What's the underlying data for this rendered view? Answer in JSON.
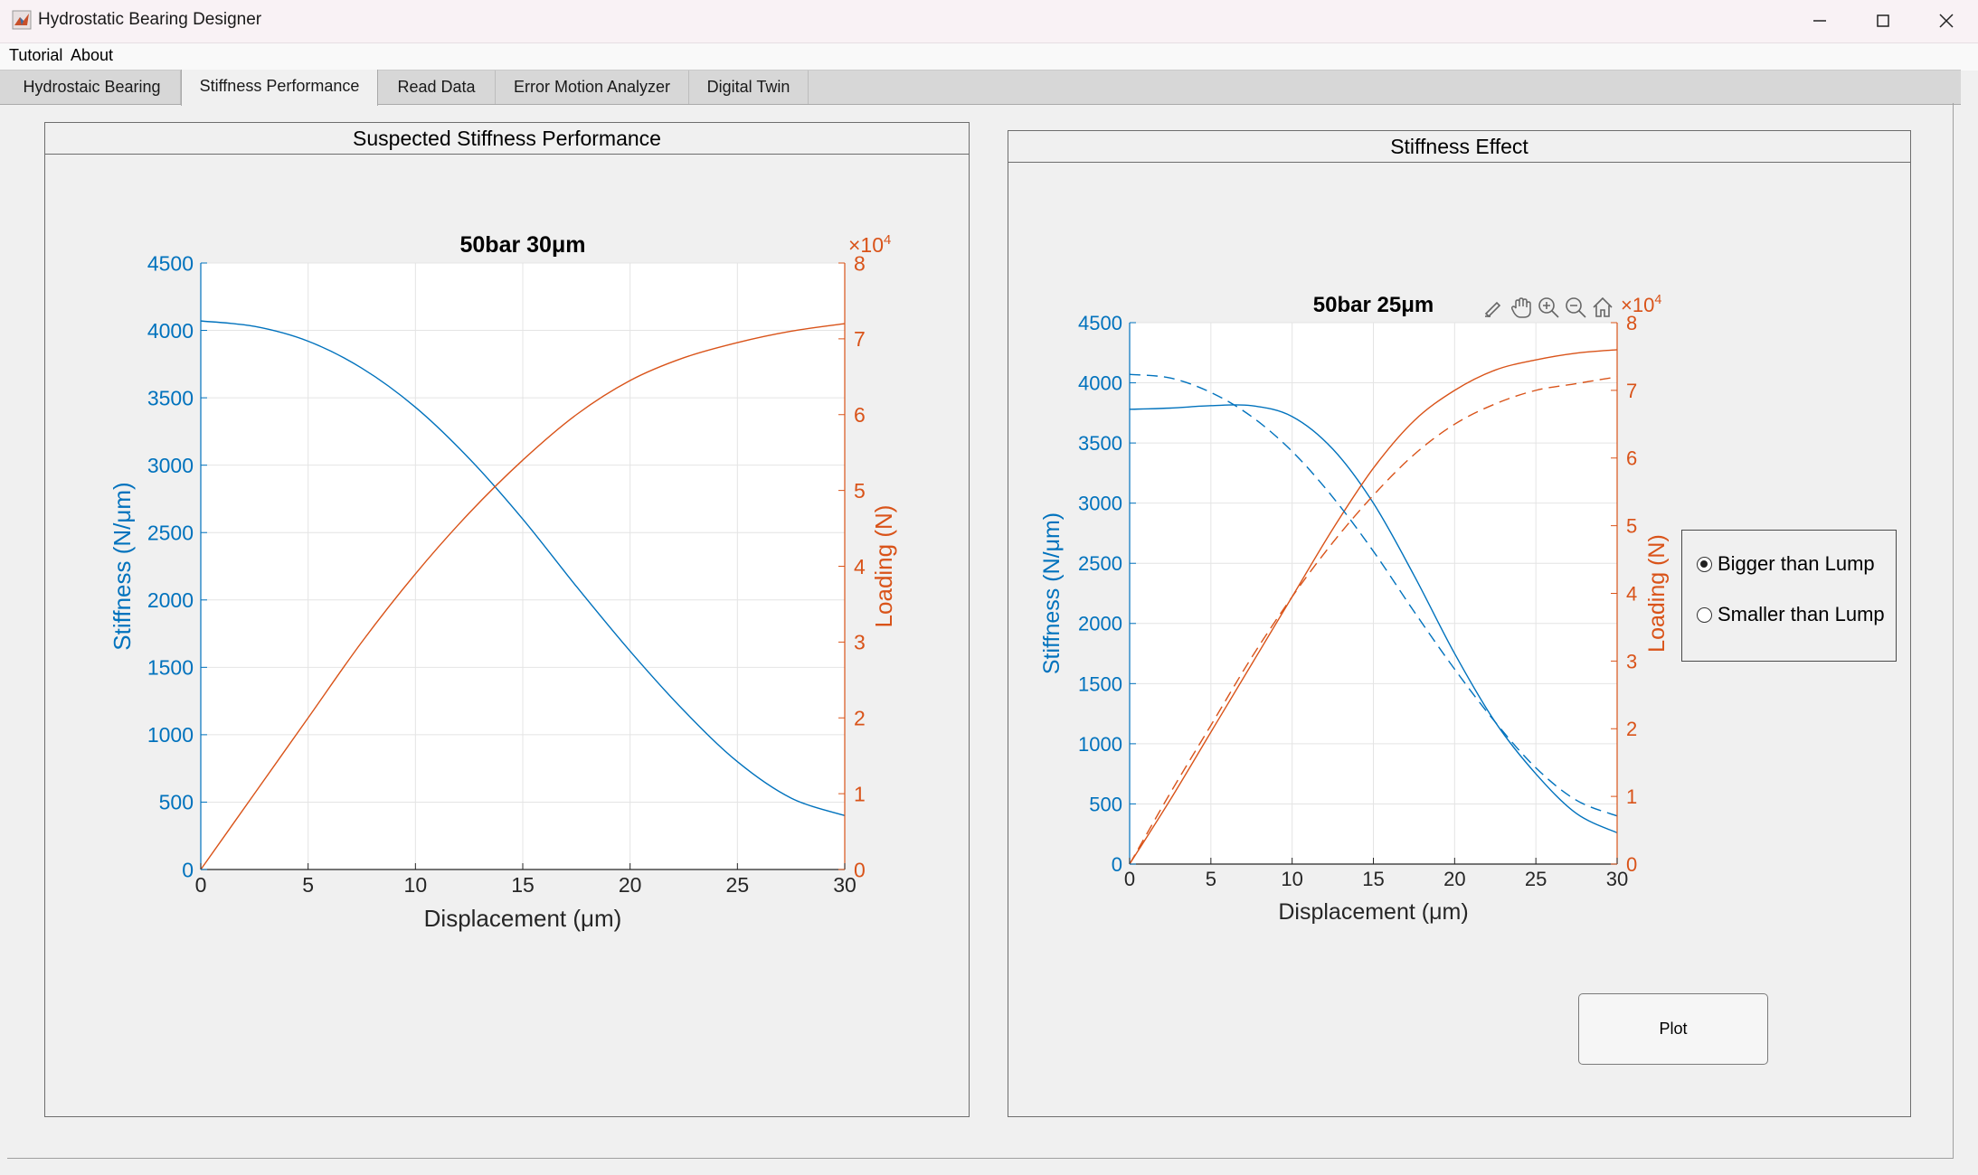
{
  "window": {
    "title": "Hydrostatic Bearing Designer",
    "icons": [
      "matlab-icon",
      "minimize-icon",
      "maximize-icon",
      "close-icon"
    ]
  },
  "menu": {
    "items": [
      "Tutorial",
      "About"
    ]
  },
  "tabs": [
    {
      "label": "Hydrostaic Bearing",
      "active": false
    },
    {
      "label": "Stiffness Performance",
      "active": true
    },
    {
      "label": "Read Data",
      "active": false
    },
    {
      "label": "Error Motion Analyzer",
      "active": false
    },
    {
      "label": "Digital Twin",
      "active": false
    }
  ],
  "left_panel": {
    "title": "Suspected Stiffness Performance"
  },
  "right_panel": {
    "title": "Stiffness Effect"
  },
  "toolbar_icons": [
    "brush-icon",
    "pan-icon",
    "zoom-in-icon",
    "zoom-out-icon",
    "home-icon"
  ],
  "radio_group": {
    "options": [
      {
        "label": "Bigger than Lump",
        "selected": true
      },
      {
        "label": "Smaller than Lump",
        "selected": false
      }
    ]
  },
  "plot_button": {
    "label": "Plot"
  },
  "colors": {
    "stiffness": "#0072bd",
    "loading": "#d95319"
  },
  "chart_data": [
    {
      "type": "line",
      "title": "50bar  30μm",
      "xlabel": "Displacement  (μm)",
      "ylabel_left": "Stiffness  (N/μm)",
      "ylabel_right": "Loading (N)",
      "right_exponent": "×10^4",
      "xlim": [
        0,
        30
      ],
      "ylim_left": [
        0,
        4500
      ],
      "ylim_right": [
        0,
        8
      ],
      "x_ticks": [
        0,
        5,
        10,
        15,
        20,
        25,
        30
      ],
      "y_ticks_left": [
        0,
        500,
        1000,
        1500,
        2000,
        2500,
        3000,
        3500,
        4000,
        4500
      ],
      "y_ticks_right": [
        0,
        1,
        2,
        3,
        4,
        5,
        6,
        7,
        8
      ],
      "grid": true,
      "series": [
        {
          "axis": "left",
          "style": "solid",
          "x": [
            0,
            2.5,
            5,
            7.5,
            10,
            12.5,
            15,
            17.5,
            20,
            22.5,
            25,
            27.5,
            30
          ],
          "values": [
            4070,
            4030,
            3920,
            3720,
            3430,
            3050,
            2600,
            2100,
            1620,
            1180,
            800,
            530,
            400
          ]
        },
        {
          "axis": "right",
          "style": "solid",
          "x": [
            0,
            2.5,
            5,
            7.5,
            10,
            12.5,
            15,
            17.5,
            20,
            22.5,
            25,
            27.5,
            30
          ],
          "values": [
            0,
            1.0,
            2.0,
            3.0,
            3.9,
            4.7,
            5.4,
            6.0,
            6.45,
            6.75,
            6.95,
            7.1,
            7.2
          ]
        }
      ]
    },
    {
      "type": "line",
      "title": "50bar  25μm",
      "xlabel": "Displacement  (μm)",
      "ylabel_left": "Stiffness  (N/μm)",
      "ylabel_right": "Loading (N)",
      "right_exponent": "×10^4",
      "xlim": [
        0,
        30
      ],
      "ylim_left": [
        0,
        4500
      ],
      "ylim_right": [
        0,
        8
      ],
      "x_ticks": [
        0,
        5,
        10,
        15,
        20,
        25,
        30
      ],
      "y_ticks_left": [
        0,
        500,
        1000,
        1500,
        2000,
        2500,
        3000,
        3500,
        4000,
        4500
      ],
      "y_ticks_right": [
        0,
        1,
        2,
        3,
        4,
        5,
        6,
        7,
        8
      ],
      "grid": true,
      "series": [
        {
          "axis": "left",
          "style": "solid",
          "x": [
            0,
            2.5,
            5,
            7.5,
            10,
            12.5,
            15,
            17.5,
            20,
            22.5,
            25,
            27.5,
            30
          ],
          "values": [
            3780,
            3790,
            3810,
            3810,
            3720,
            3450,
            3000,
            2400,
            1750,
            1180,
            750,
            420,
            260
          ]
        },
        {
          "axis": "right",
          "style": "solid",
          "x": [
            0,
            2.5,
            5,
            7.5,
            10,
            12.5,
            15,
            17.5,
            20,
            22.5,
            25,
            27.5,
            30
          ],
          "values": [
            0,
            0.95,
            1.95,
            2.95,
            3.95,
            4.95,
            5.85,
            6.55,
            7.0,
            7.3,
            7.45,
            7.55,
            7.6
          ]
        },
        {
          "axis": "left",
          "style": "dashed",
          "x": [
            0,
            2.5,
            5,
            7.5,
            10,
            12.5,
            15,
            17.5,
            20,
            22.5,
            25,
            27.5,
            30
          ],
          "values": [
            4070,
            4040,
            3920,
            3720,
            3430,
            3050,
            2600,
            2100,
            1620,
            1180,
            800,
            530,
            400
          ]
        },
        {
          "axis": "right",
          "style": "dashed",
          "x": [
            0,
            2.5,
            5,
            7.5,
            10,
            12.5,
            15,
            17.5,
            20,
            22.5,
            25,
            27.5,
            30
          ],
          "values": [
            0,
            1.05,
            2.05,
            3.05,
            3.95,
            4.75,
            5.45,
            6.05,
            6.5,
            6.8,
            7.0,
            7.1,
            7.2
          ]
        }
      ]
    }
  ]
}
